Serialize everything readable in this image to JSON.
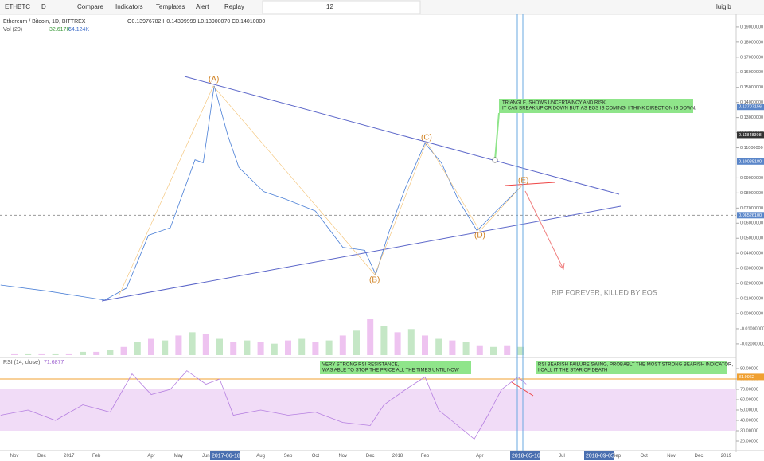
{
  "toolbar": {
    "symbol": "ETHBTC",
    "interval": "D",
    "compare": "Compare",
    "indicators": "Indicators",
    "templates": "Templates",
    "alert": "Alert",
    "replay": "Replay",
    "font_size": "12",
    "user": "luigib"
  },
  "legend": {
    "title": "Ethereum / Bitcoin, 1D, BITTREX",
    "ohlc": "O0.13976782 H0.14399999 L0.13900070 C0.14010000",
    "vol_name": "Vol (20)",
    "vol_a": "32.617K",
    "vol_b": "64.124K",
    "rsi_name": "RSI (14, close)",
    "rsi_value": "71.6877"
  },
  "annotations": {
    "a": "(A)",
    "b": "(B)",
    "c": "(C)",
    "d": "(D)",
    "e": "(E)",
    "triangle": [
      "TRIANGLE, SHOWS UNCERTAINCY AND RISK,",
      "IT CAN BREAK UP OR DOWN BUT, AS EOS IS COMING, I THINK DIRECTION IS DOWN."
    ],
    "rip": "RIP FOREVER, KILLED BY EOS",
    "rsi_resistance": [
      "VERY STRONG RSI RESISTANCE,",
      "WAS ABLE TO STOP THE PRICE ALL THE TIMES UNTIL NOW"
    ],
    "rsi_swing": [
      "RSI BEARISH FAILURE SWING, PROBABLT THE MOST STRONG BEARISH INDICATOR,",
      "I CALL IT THE STAR OF DEATH"
    ]
  },
  "date_boxes": [
    "2017-06-18",
    "2018-05-16",
    "2018-09-05"
  ],
  "months": [
    "Nov",
    "Dec",
    "2017",
    "Feb",
    null,
    "Apr",
    "May",
    "Jun",
    null,
    "Aug",
    "Sep",
    "Oct",
    "Nov",
    "Dec",
    "2018",
    "Feb",
    null,
    "Apr",
    null,
    "Jun",
    "Jul",
    null,
    "Sep",
    "Oct",
    "Nov",
    "Dec",
    "2019"
  ],
  "price": {
    "x": [
      -0.5,
      1.2,
      3.3,
      4.1,
      4.9,
      5.7,
      6.6,
      6.9,
      7.3,
      7.8,
      8.2,
      9.1,
      9.9,
      11,
      12,
      12.8,
      13.2,
      13.7,
      14.3,
      15,
      15.6,
      16.2,
      16.9,
      17.6,
      18.5
    ],
    "values": [
      0.019,
      0.015,
      0.009,
      0.017,
      0.052,
      0.057,
      0.102,
      0.1,
      0.151,
      0.118,
      0.097,
      0.081,
      0.076,
      0.068,
      0.044,
      0.042,
      0.026,
      0.055,
      0.084,
      0.113,
      0.1,
      0.076,
      0.055,
      0.068,
      0.084
    ],
    "color": "#4a7fd6",
    "yticks": [
      {
        "value": 0.19,
        "label": "0.19000000"
      },
      {
        "value": 0.18,
        "label": "0.18000000"
      },
      {
        "value": 0.17,
        "label": "0.17000000"
      },
      {
        "value": 0.16,
        "label": "0.16000000"
      },
      {
        "value": 0.15,
        "label": "0.15000000"
      },
      {
        "value": 0.14,
        "label": "0.14000000"
      },
      {
        "value": 0.13,
        "label": "0.13000000"
      },
      {
        "value": 0.12,
        "label": "0.12000000"
      },
      {
        "value": 0.11,
        "label": "0.11000000"
      },
      {
        "value": 0.09,
        "label": "0.09000000"
      },
      {
        "value": 0.08,
        "label": "0.08000000"
      },
      {
        "value": 0.07,
        "label": "0.07000000"
      },
      {
        "value": 0.06,
        "label": "0.06000000"
      },
      {
        "value": 0.05,
        "label": "0.05000000"
      },
      {
        "value": 0.04,
        "label": "0.04000000"
      },
      {
        "value": 0.03,
        "label": "0.03000000"
      },
      {
        "value": 0.02,
        "label": "0.02000000"
      },
      {
        "value": 0.01,
        "label": "0.01000000"
      },
      {
        "value": 0,
        "label": "0.00000000"
      },
      {
        "value": -0.01,
        "label": "-0.01000000"
      },
      {
        "value": -0.02,
        "label": "-0.02000000"
      }
    ],
    "markers": [
      {
        "value": 0.13707156,
        "label": "0.13707156",
        "color": "#5a86c9"
      },
      {
        "value": 0.11848308,
        "label": "0.11848308",
        "color": "#333333"
      },
      {
        "value": 0.1008818,
        "label": "0.10088180",
        "color": "#5a86c9"
      },
      {
        "value": 0.065261,
        "label": "0.06526100",
        "color": "#5a86c9"
      }
    ]
  },
  "volume": {
    "x": [
      0,
      0.5,
      1,
      1.5,
      2,
      2.5,
      3,
      3.5,
      4,
      4.5,
      5,
      5.5,
      6,
      6.5,
      7,
      7.5,
      8,
      8.5,
      9,
      9.5,
      10,
      10.5,
      11,
      11.5,
      12,
      12.5,
      13,
      13.5,
      14,
      14.5,
      15,
      15.5,
      16,
      16.5,
      17,
      17.5,
      18,
      18.5
    ],
    "values": [
      1,
      1,
      1,
      1,
      1,
      2,
      2,
      3,
      5,
      8,
      10,
      9,
      12,
      14,
      13,
      10,
      8,
      9,
      8,
      7,
      9,
      10,
      8,
      9,
      12,
      15,
      22,
      18,
      14,
      16,
      12,
      10,
      9,
      8,
      6,
      5,
      6,
      5
    ],
    "colors": [
      "#e39be6",
      "#9ed7a0"
    ]
  },
  "rsi": {
    "x": [
      -0.5,
      0.5,
      1.5,
      2.5,
      3.5,
      4.3,
      5,
      5.7,
      6.3,
      7,
      7.5,
      8,
      9,
      10,
      11,
      12,
      13,
      13.5,
      14.3,
      15,
      15.5,
      16.2,
      16.8,
      17.3,
      17.8,
      18.4,
      18.7
    ],
    "values": [
      45,
      50,
      40,
      55,
      48,
      85,
      65,
      70,
      88,
      75,
      80,
      45,
      50,
      45,
      48,
      38,
      35,
      55,
      70,
      82,
      50,
      35,
      22,
      45,
      70,
      82,
      75
    ],
    "color": "#b57fe0",
    "yticks": [
      {
        "value": 90,
        "label": "90.00000"
      },
      {
        "value": 80,
        "label": "80.00000"
      },
      {
        "value": 70,
        "label": "70.00000"
      },
      {
        "value": 60,
        "label": "60.00000"
      },
      {
        "value": 50,
        "label": "50.00000"
      },
      {
        "value": 40,
        "label": "40.00000"
      },
      {
        "value": 30,
        "label": "30.00000"
      },
      {
        "value": 20,
        "label": "20.00000"
      }
    ],
    "band": [
      70,
      30
    ],
    "resistance": 80,
    "marker": {
      "value": 81.9962,
      "label": "81.9962",
      "color": "#f0a030"
    }
  }
}
